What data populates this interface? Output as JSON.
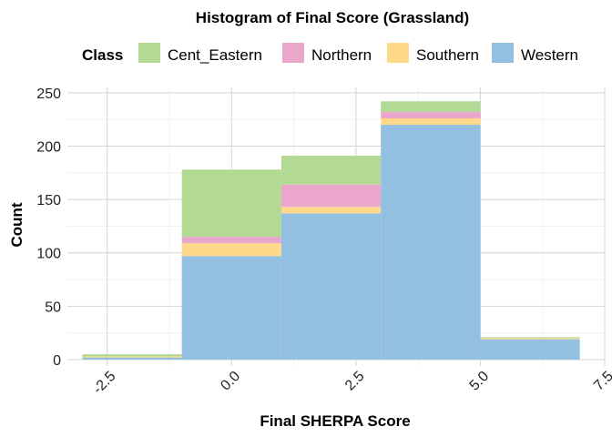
{
  "chart_data": {
    "type": "bar",
    "subtype": "stacked-histogram",
    "title": "Histogram of Final Score (Grassland)",
    "xlabel": "Final SHERPA Score",
    "ylabel": "Count",
    "xlim": [
      -3.3,
      7.5
    ],
    "ylim": [
      -6,
      255
    ],
    "x_ticks": [
      -2.5,
      0.0,
      2.5,
      5.0,
      7.5
    ],
    "x_tick_labels": [
      "-2.5",
      "0.0",
      "2.5",
      "5.0",
      "7.5"
    ],
    "y_ticks": [
      0,
      50,
      100,
      150,
      200,
      250
    ],
    "y_tick_labels": [
      "0",
      "50",
      "100",
      "150",
      "200",
      "250"
    ],
    "grid": true,
    "legend": {
      "title": "Class",
      "position": "top"
    },
    "bins": [
      {
        "x0": -3,
        "x1": -1
      },
      {
        "x0": -1,
        "x1": 1
      },
      {
        "x0": 1,
        "x1": 3
      },
      {
        "x0": 3,
        "x1": 5
      },
      {
        "x0": 5,
        "x1": 7
      }
    ],
    "series": [
      {
        "name": "Western",
        "color": "#93C0E0",
        "values": [
          2,
          97,
          137,
          220,
          19
        ]
      },
      {
        "name": "Southern",
        "color": "#FFD98A",
        "values": [
          1,
          12,
          6,
          6,
          1
        ]
      },
      {
        "name": "Northern",
        "color": "#EBA6CB",
        "values": [
          0,
          6,
          21,
          6,
          0
        ]
      },
      {
        "name": "Cent_Eastern",
        "color": "#B3DA95",
        "values": [
          2,
          63,
          27,
          10,
          1
        ]
      }
    ],
    "legend_order": [
      "Cent_Eastern",
      "Northern",
      "Southern",
      "Western"
    ]
  }
}
